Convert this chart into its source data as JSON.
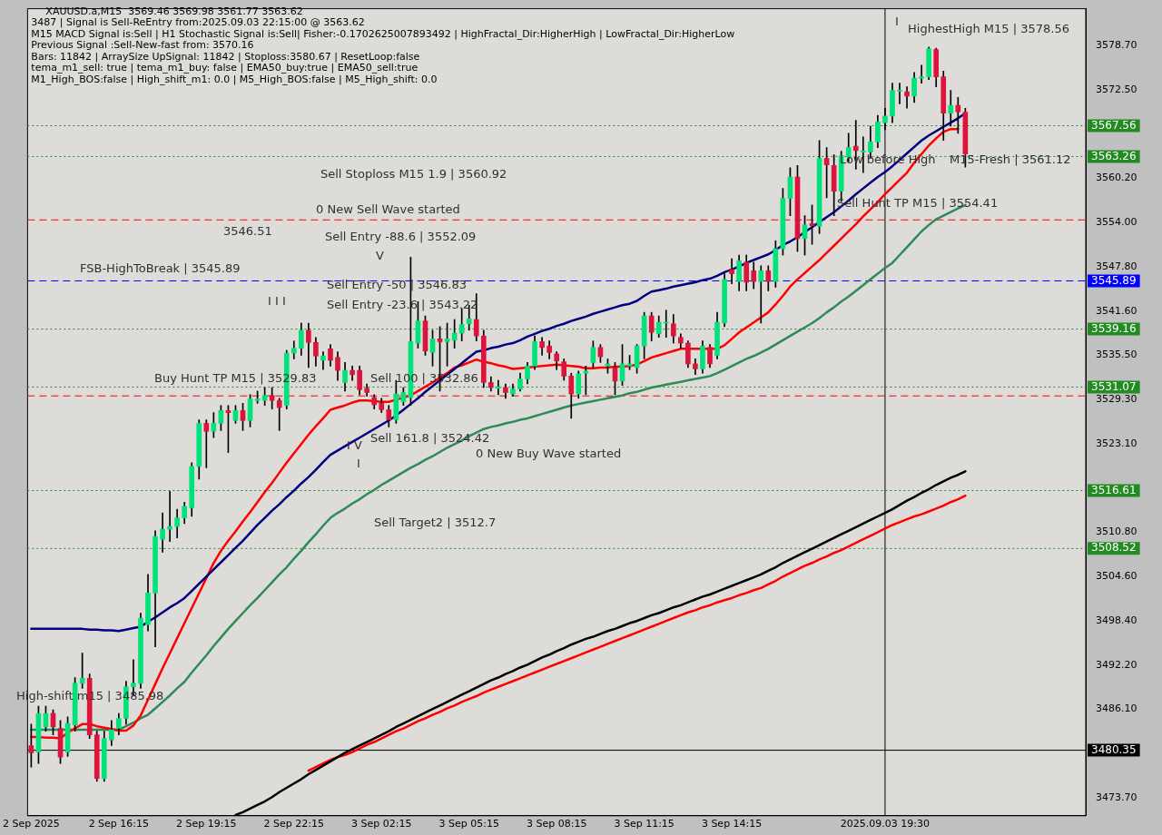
{
  "chart_data": {
    "type": "candlestick",
    "title": "XAUUSD.a,M15  3569.46 3569.98 3561.77 3563.62",
    "categories": [
      "2 Sep 2025",
      null,
      null,
      null,
      null,
      null,
      null,
      null,
      null,
      null,
      null,
      null,
      "2 Sep 16:15",
      null,
      null,
      null,
      null,
      null,
      null,
      null,
      null,
      null,
      null,
      null,
      "2 Sep 19:15",
      null,
      null,
      null,
      null,
      null,
      null,
      null,
      null,
      null,
      null,
      null,
      "2 Sep 22:15",
      null,
      null,
      null,
      null,
      null,
      null,
      null,
      null,
      null,
      null,
      null,
      "3 Sep 02:15",
      null,
      null,
      null,
      null,
      null,
      null,
      null,
      null,
      null,
      null,
      null,
      "3 Sep 05:15",
      null,
      null,
      null,
      null,
      null,
      null,
      null,
      null,
      null,
      null,
      null,
      "3 Sep 08:15",
      null,
      null,
      null,
      null,
      null,
      null,
      null,
      null,
      null,
      null,
      null,
      "3 Sep 11:15",
      null,
      null,
      null,
      null,
      null,
      null,
      null,
      null,
      null,
      null,
      null,
      "3 Sep 14:15",
      null,
      null,
      null,
      null,
      null,
      null,
      null,
      null,
      null,
      null,
      null,
      null,
      null,
      null,
      null,
      null,
      null,
      null,
      null,
      null,
      "2025.09.03 19:30",
      null,
      null,
      null,
      null,
      null,
      null,
      null,
      null,
      null,
      null,
      null,
      null,
      null,
      null,
      null,
      null,
      null,
      null,
      null,
      null,
      null,
      null,
      null,
      null,
      null,
      null,
      null
    ],
    "ohlc": [
      [
        3481,
        3484,
        3478,
        3480
      ],
      [
        3480.1,
        3486.5,
        3478.5,
        3485.5
      ],
      [
        3483.6,
        3486.5,
        3483,
        3485.5
      ],
      [
        3485.5,
        3486,
        3482.5,
        3483.6
      ],
      [
        3483.4,
        3484.5,
        3478.5,
        3479.4
      ],
      [
        3480.1,
        3485,
        3479.5,
        3484.1
      ],
      [
        3483.9,
        3490.5,
        3483,
        3489.7
      ],
      [
        3489.7,
        3493.9,
        3489,
        3490.4
      ],
      [
        3490.4,
        3491,
        3482,
        3482.5
      ],
      [
        3482.5,
        3483,
        3476,
        3476.4
      ],
      [
        3476.4,
        3483,
        3476,
        3482
      ],
      [
        3481.8,
        3484.5,
        3481,
        3483.2
      ],
      [
        3483.4,
        3485.5,
        3482.5,
        3484.8
      ],
      [
        3484.8,
        3490,
        3484,
        3489.2
      ],
      [
        3489.2,
        3493,
        3488,
        3489.7
      ],
      [
        3489.7,
        3499.5,
        3489,
        3498.8
      ],
      [
        3497.9,
        3504.9,
        3497,
        3502.3
      ],
      [
        3502.3,
        3511,
        3494.8,
        3510.2
      ],
      [
        3509.8,
        3513.5,
        3508,
        3511.2
      ],
      [
        3511.2,
        3516.5,
        3509.5,
        3511.6
      ],
      [
        3511.6,
        3514,
        3510,
        3512.8
      ],
      [
        3512.8,
        3515,
        3512,
        3514.4
      ],
      [
        3514.2,
        3520.5,
        3513,
        3520
      ],
      [
        3520,
        3526.5,
        3518.2,
        3526
      ],
      [
        3526,
        3526.5,
        3519.8,
        3524.9
      ],
      [
        3524.9,
        3527.5,
        3524,
        3526
      ],
      [
        3526,
        3528.5,
        3525,
        3527.8
      ],
      [
        3527.8,
        3528.5,
        3521.9,
        3527.5
      ],
      [
        3526.4,
        3528.5,
        3526,
        3527.8
      ],
      [
        3527.8,
        3528.8,
        3525,
        3526.4
      ],
      [
        3526.4,
        3530,
        3525.5,
        3529.4
      ],
      [
        3529.2,
        3530.5,
        3528.8,
        3529.4
      ],
      [
        3529.2,
        3531,
        3528.5,
        3529.9
      ],
      [
        3529.9,
        3531,
        3528,
        3529.2
      ],
      [
        3529.2,
        3529.5,
        3525,
        3528.2
      ],
      [
        3528.5,
        3536.2,
        3528,
        3535.8
      ],
      [
        3535.8,
        3537.5,
        3535,
        3536.5
      ],
      [
        3536.5,
        3540,
        3535.5,
        3539
      ],
      [
        3539,
        3540,
        3533.8,
        3537.3
      ],
      [
        3537.3,
        3538,
        3534,
        3535.4
      ],
      [
        3534.8,
        3536,
        3533.5,
        3535.4
      ],
      [
        3536.4,
        3537,
        3534,
        3534.8
      ],
      [
        3535.2,
        3536,
        3532,
        3533.4
      ],
      [
        3531.7,
        3534.5,
        3530.5,
        3533.4
      ],
      [
        3533.4,
        3534,
        3532,
        3532.8
      ],
      [
        3533.4,
        3534,
        3530,
        3530.7
      ],
      [
        3530.9,
        3531.5,
        3529.8,
        3530.3
      ],
      [
        3529.6,
        3530,
        3528,
        3528.6
      ],
      [
        3528.8,
        3529.5,
        3527.5,
        3527.9
      ],
      [
        3527.9,
        3528.5,
        3525.5,
        3526.5
      ],
      [
        3526.5,
        3532,
        3526,
        3530.1
      ],
      [
        3529,
        3531,
        3528.5,
        3530.3
      ],
      [
        3529.6,
        3549.2,
        3528.5,
        3537.4
      ],
      [
        3537.2,
        3543,
        3536.5,
        3540.3
      ],
      [
        3540.3,
        3541,
        3535.5,
        3536.1
      ],
      [
        3535.9,
        3539,
        3534,
        3537.8
      ],
      [
        3537.8,
        3539.5,
        3530.5,
        3537.4
      ],
      [
        3537.4,
        3540,
        3534,
        3537.8
      ],
      [
        3537.6,
        3540.5,
        3536.5,
        3538.6
      ],
      [
        3538.6,
        3542,
        3537.5,
        3539.8
      ],
      [
        3539.9,
        3542.5,
        3539,
        3540.6
      ],
      [
        3540.5,
        3544.1,
        3537.5,
        3538.2
      ],
      [
        3538.2,
        3539,
        3531,
        3531.7
      ],
      [
        3531.7,
        3532.5,
        3530.5,
        3531
      ],
      [
        3530.9,
        3532,
        3530,
        3531.1
      ],
      [
        3531,
        3531.5,
        3529.5,
        3530.3
      ],
      [
        3530.1,
        3531.5,
        3529.8,
        3530.8
      ],
      [
        3530.8,
        3533,
        3530.5,
        3532.2
      ],
      [
        3532.2,
        3534.5,
        3531.5,
        3534
      ],
      [
        3534,
        3538.2,
        3533.5,
        3537.4
      ],
      [
        3537.4,
        3538,
        3535.5,
        3536.6
      ],
      [
        3536.8,
        3537.5,
        3535,
        3535.9
      ],
      [
        3535.7,
        3536,
        3533.5,
        3534.7
      ],
      [
        3534.6,
        3535,
        3532,
        3532.6
      ],
      [
        3532.6,
        3533,
        3526.7,
        3530.1
      ],
      [
        3530.1,
        3533.3,
        3529.5,
        3532.9
      ],
      [
        3533,
        3534,
        3530,
        3533.3
      ],
      [
        3534.5,
        3537.5,
        3533.8,
        3536.6
      ],
      [
        3536.6,
        3537,
        3534.5,
        3535.3
      ],
      [
        3534,
        3535,
        3533,
        3534.3
      ],
      [
        3533.8,
        3534.5,
        3530,
        3531.9
      ],
      [
        3531.9,
        3537,
        3531.3,
        3534.3
      ],
      [
        3534,
        3535.5,
        3533.5,
        3534.3
      ],
      [
        3533.8,
        3537,
        3533,
        3536.8
      ],
      [
        3536.8,
        3541.5,
        3535,
        3541
      ],
      [
        3541,
        3541.5,
        3537.5,
        3538.7
      ],
      [
        3538.5,
        3541,
        3538,
        3540.1
      ],
      [
        3540,
        3541.8,
        3538,
        3540.1
      ],
      [
        3539.9,
        3541.2,
        3537.2,
        3538.2
      ],
      [
        3538,
        3538.5,
        3536.5,
        3537.2
      ],
      [
        3537.2,
        3537.5,
        3533.8,
        3534.3
      ],
      [
        3534.3,
        3535,
        3532.8,
        3533.6
      ],
      [
        3533.6,
        3537.5,
        3533,
        3536.8
      ],
      [
        3536.6,
        3537,
        3533.8,
        3534.3
      ],
      [
        3535.5,
        3541.5,
        3535,
        3540.1
      ],
      [
        3540,
        3546.9,
        3539.5,
        3546.1
      ],
      [
        3547.5,
        3549,
        3545.5,
        3546.9
      ],
      [
        3545.8,
        3549.5,
        3544.5,
        3548.7
      ],
      [
        3548.5,
        3549.5,
        3544.5,
        3545.7
      ],
      [
        3547.3,
        3548.5,
        3544.8,
        3545.8
      ],
      [
        3545.8,
        3548,
        3540,
        3547.3
      ],
      [
        3547.3,
        3548,
        3544.5,
        3545.8
      ],
      [
        3545.8,
        3551.5,
        3545,
        3550.4
      ],
      [
        3550.4,
        3558.8,
        3549.5,
        3557.4
      ],
      [
        3557.4,
        3561.7,
        3555,
        3560.4
      ],
      [
        3560.4,
        3562,
        3550,
        3551.8
      ],
      [
        3551.8,
        3555,
        3549.5,
        3553.7
      ],
      [
        3553.9,
        3556.5,
        3551,
        3553.6
      ],
      [
        3553.5,
        3565.5,
        3552.5,
        3563
      ],
      [
        3563,
        3564.5,
        3557.5,
        3562.1
      ],
      [
        3562,
        3563.5,
        3555,
        3558.4
      ],
      [
        3558.4,
        3564,
        3557,
        3563.4
      ],
      [
        3563.2,
        3566.5,
        3562.5,
        3564.5
      ],
      [
        3564.7,
        3568.3,
        3561.5,
        3564.1
      ],
      [
        3563.9,
        3566,
        3561,
        3563.9
      ],
      [
        3563.9,
        3567.5,
        3563,
        3565.3
      ],
      [
        3565.3,
        3569,
        3564.5,
        3568.1
      ],
      [
        3568,
        3570,
        3567,
        3568.9
      ],
      [
        3568.9,
        3573.5,
        3568,
        3572.5
      ],
      [
        3572.4,
        3573.5,
        3570.6,
        3572.5
      ],
      [
        3572.3,
        3573,
        3570,
        3571.7
      ],
      [
        3571.7,
        3575,
        3570.8,
        3574.2
      ],
      [
        3574.2,
        3576,
        3573.5,
        3574.4
      ],
      [
        3574.4,
        3578.56,
        3574,
        3578.3
      ],
      [
        3578.2,
        3578.4,
        3573,
        3574.4
      ],
      [
        3574.4,
        3575.2,
        3565.5,
        3569.3
      ],
      [
        3569.3,
        3572.5,
        3567.5,
        3570.4
      ],
      [
        3570.4,
        3571.5,
        3566.5,
        3569.5
      ],
      [
        3569.46,
        3569.98,
        3561.77,
        3563.62
      ],
      null,
      null,
      null,
      null,
      null,
      null,
      null,
      null,
      null,
      null,
      null,
      null,
      null,
      null,
      null,
      null
    ],
    "colors": [
      "#dc143c",
      "#00e27a",
      "#00e27a",
      "#dc143c",
      "#dc143c",
      "#00e27a",
      "#00e27a",
      "#00e27a",
      "#dc143c",
      "#dc143c",
      "#00e27a",
      "#00e27a",
      "#00e27a",
      "#00e27a",
      "#00e27a",
      "#00e27a",
      "#00e27a",
      "#00e27a",
      "#00e27a",
      "#00e27a",
      "#00e27a",
      "#00e27a",
      "#00e27a",
      "#00e27a",
      "#dc143c",
      "#00e27a",
      "#00e27a",
      "#dc143c",
      "#00e27a",
      "#dc143c",
      "#00e27a",
      "#00e27a",
      "#00e27a",
      "#dc143c",
      "#dc143c",
      "#00e27a",
      "#00e27a",
      "#00e27a",
      "#dc143c",
      "#dc143c",
      "#00e27a",
      "#dc143c",
      "#dc143c",
      "#00e27a",
      "#dc143c",
      "#dc143c",
      "#dc143c",
      "#dc143c",
      "#dc143c",
      "#dc143c",
      "#00e27a",
      "#00e27a",
      "#00e27a",
      "#00e27a",
      "#dc143c",
      "#00e27a",
      "#dc143c",
      "#00e27a",
      "#00e27a",
      "#00e27a",
      "#00e27a",
      "#dc143c",
      "#dc143c",
      "#dc143c",
      "#00e27a",
      "#dc143c",
      "#00e27a",
      "#00e27a",
      "#00e27a",
      "#00e27a",
      "#dc143c",
      "#dc143c",
      "#dc143c",
      "#dc143c",
      "#dc143c",
      "#00e27a",
      "#00e27a",
      "#00e27a",
      "#dc143c",
      "#00e27a",
      "#dc143c",
      "#00e27a",
      "#00e27a",
      "#00e27a",
      "#00e27a",
      "#dc143c",
      "#00e27a",
      "#00e27a",
      "#dc143c",
      "#dc143c",
      "#dc143c",
      "#dc143c",
      "#00e27a",
      "#dc143c",
      "#00e27a",
      "#00e27a",
      "#dc143c",
      "#00e27a",
      "#dc143c",
      "#dc143c",
      "#00e27a",
      "#dc143c",
      "#00e27a",
      "#00e27a",
      "#00e27a",
      "#dc143c",
      "#00e27a",
      "#dc143c",
      "#00e27a",
      "#dc143c",
      "#dc143c",
      "#00e27a",
      "#00e27a",
      "#dc143c",
      "#00e27a",
      "#00e27a",
      "#00e27a",
      "#00e27a",
      "#00e27a",
      "#00e27a",
      "#dc143c",
      "#00e27a",
      "#00e27a",
      "#00e27a",
      "#dc143c",
      "#dc143c",
      "#00e27a",
      "#dc143c",
      "#dc143c",
      null,
      null,
      null,
      null,
      null,
      null,
      null,
      null,
      null,
      null,
      null,
      null,
      null,
      null,
      null,
      null
    ],
    "series": [
      {
        "type": "line",
        "color": "#000080",
        "values": [
          3497.3,
          3497.3,
          3497.3,
          3497.3,
          3497.3,
          3497.3,
          3497.3,
          3497.3,
          3497.2,
          3497.2,
          3497.1,
          3497.1,
          3497.0,
          3497.2,
          3497.4,
          3497.6,
          3498.3,
          3498.9,
          3499.6,
          3500.3,
          3500.9,
          3501.6,
          3502.6,
          3503.6,
          3504.6,
          3505.6,
          3506.6,
          3507.6,
          3508.6,
          3509.6,
          3510.7,
          3511.8,
          3512.8,
          3513.8,
          3514.7,
          3515.7,
          3516.6,
          3517.6,
          3518.5,
          3519.5,
          3520.6,
          3521.6,
          3522.2,
          3522.8,
          3523.4,
          3524.0,
          3524.6,
          3525.2,
          3525.8,
          3526.4,
          3527.1,
          3527.9,
          3528.7,
          3529.5,
          3530.4,
          3531.2,
          3532.0,
          3532.8,
          3533.6,
          3534.4,
          3535.2,
          3536.0,
          3536.2,
          3536.5,
          3536.7,
          3537.0,
          3537.2,
          3537.6,
          3538.1,
          3538.5,
          3538.9,
          3539.2,
          3539.6,
          3539.9,
          3540.3,
          3540.6,
          3540.9,
          3541.3,
          3541.6,
          3541.9,
          3542.2,
          3542.5,
          3542.7,
          3543.1,
          3543.8,
          3544.4,
          3544.6,
          3544.8,
          3545.1,
          3545.3,
          3545.5,
          3545.7,
          3546.0,
          3546.2,
          3546.6,
          3547.1,
          3547.5,
          3547.9,
          3548.4,
          3548.8,
          3549.2,
          3549.6,
          3550.2,
          3550.9,
          3551.4,
          3552.0,
          3552.7,
          3553.4,
          3554.1,
          3554.8,
          3555.5,
          3556.3,
          3557.1,
          3558.0,
          3558.8,
          3559.6,
          3560.4,
          3561.1,
          3561.9,
          3562.8,
          3563.7,
          3564.6,
          3565.5,
          3566.2,
          3566.8,
          3567.4,
          3568.0,
          3568.6,
          3569.3,
          null,
          null,
          null,
          null,
          null,
          null,
          null,
          null,
          null,
          null,
          null,
          null,
          null,
          null,
          null,
          null
        ]
      },
      {
        "type": "line",
        "color": "#ff0000",
        "values": [
          3482.2,
          3482.2,
          3482.1,
          3482.1,
          3482.0,
          3482.8,
          3483.4,
          3484.0,
          3484.0,
          3483.7,
          3483.5,
          3483.3,
          3483.1,
          3483.1,
          3483.8,
          3485.2,
          3487.4,
          3489.6,
          3491.8,
          3493.9,
          3496.0,
          3498.1,
          3500.2,
          3502.3,
          3504.4,
          3506.5,
          3508.2,
          3509.6,
          3510.9,
          3512.3,
          3513.6,
          3515.0,
          3516.4,
          3517.7,
          3519.1,
          3520.5,
          3521.8,
          3523.1,
          3524.4,
          3525.6,
          3526.7,
          3527.9,
          3528.2,
          3528.5,
          3528.9,
          3529.2,
          3529.2,
          3529.1,
          3529.0,
          3529.0,
          3529.3,
          3529.6,
          3529.9,
          3530.5,
          3531.1,
          3531.7,
          3532.4,
          3533.0,
          3533.8,
          3534.1,
          3534.5,
          3534.9,
          3534.6,
          3534.4,
          3534.1,
          3533.9,
          3533.6,
          3533.7,
          3533.8,
          3533.9,
          3534.0,
          3534.1,
          3534.2,
          3534.1,
          3534.0,
          3533.9,
          3533.7,
          3533.7,
          3533.8,
          3533.8,
          3533.9,
          3533.9,
          3534.0,
          3534.2,
          3534.7,
          3535.2,
          3535.5,
          3535.8,
          3536.1,
          3536.4,
          3536.4,
          3536.4,
          3536.4,
          3536.4,
          3536.4,
          3536.9,
          3537.8,
          3538.7,
          3539.4,
          3540.1,
          3540.8,
          3541.5,
          3542.6,
          3543.8,
          3545.1,
          3546.1,
          3547.0,
          3547.9,
          3548.8,
          3549.8,
          3550.8,
          3551.8,
          3552.8,
          3553.8,
          3554.9,
          3555.9,
          3556.9,
          3558.0,
          3559.0,
          3560.0,
          3561.0,
          3562.4,
          3563.6,
          3564.8,
          3565.8,
          3566.7,
          3567.1,
          3567.1,
          null,
          null,
          null,
          null,
          null,
          null,
          null,
          null,
          null,
          null,
          null,
          null,
          null,
          null,
          null,
          null,
          null
        ]
      },
      {
        "type": "line",
        "color": "#2e8b57",
        "values": [
          3483.2,
          3483.2,
          3483.2,
          3483.2,
          3483.2,
          3483.2,
          3483.2,
          3483.2,
          3483.2,
          3483.2,
          3483.2,
          3483.2,
          3483.2,
          3483.7,
          3484.2,
          3484.8,
          3485.3,
          3486.2,
          3487.1,
          3488.0,
          3489.0,
          3489.9,
          3491.2,
          3492.4,
          3493.6,
          3494.9,
          3496.1,
          3497.3,
          3498.4,
          3499.5,
          3500.6,
          3501.6,
          3502.7,
          3503.8,
          3504.9,
          3505.9,
          3507.1,
          3508.2,
          3509.4,
          3510.5,
          3511.7,
          3512.8,
          3513.5,
          3514.1,
          3514.8,
          3515.4,
          3516.1,
          3516.7,
          3517.4,
          3518.0,
          3518.6,
          3519.2,
          3519.8,
          3520.3,
          3520.9,
          3521.4,
          3522.0,
          3522.6,
          3523.1,
          3523.6,
          3524.2,
          3524.7,
          3525.2,
          3525.5,
          3525.7,
          3526.0,
          3526.2,
          3526.5,
          3526.7,
          3527.0,
          3527.3,
          3527.6,
          3527.9,
          3528.2,
          3528.5,
          3528.7,
          3528.9,
          3529.1,
          3529.3,
          3529.5,
          3529.7,
          3529.9,
          3530.2,
          3530.4,
          3530.7,
          3531.0,
          3531.2,
          3531.4,
          3531.6,
          3531.8,
          3532.0,
          3532.2,
          3532.4,
          3532.6,
          3533.0,
          3533.5,
          3534.0,
          3534.5,
          3535.0,
          3535.4,
          3535.9,
          3536.4,
          3537.0,
          3537.6,
          3538.2,
          3538.8,
          3539.4,
          3540.0,
          3540.7,
          3541.5,
          3542.2,
          3543.0,
          3543.7,
          3544.5,
          3545.3,
          3546.1,
          3546.9,
          3547.7,
          3548.4,
          3549.5,
          3550.6,
          3551.7,
          3552.8,
          3553.7,
          3554.5,
          3555.0,
          3555.5,
          3556.0,
          3556.5,
          null,
          null,
          null,
          null,
          null,
          null,
          null,
          null,
          null,
          null,
          null,
          null,
          null,
          null,
          null,
          null
        ]
      },
      {
        "type": "line",
        "color": "#000000",
        "values": [
          null,
          null,
          null,
          null,
          null,
          null,
          null,
          null,
          null,
          null,
          null,
          null,
          null,
          null,
          null,
          null,
          null,
          null,
          null,
          null,
          null,
          null,
          null,
          null,
          null,
          null,
          null,
          null,
          3471.3,
          3471.7,
          3472.2,
          3472.7,
          3473.2,
          3473.8,
          3474.5,
          3475.1,
          3475.7,
          3476.3,
          3477.0,
          3477.6,
          3478.2,
          3478.8,
          3479.4,
          3480.0,
          3480.5,
          3481.0,
          3481.5,
          3482.0,
          3482.5,
          3483.0,
          3483.6,
          3484.1,
          3484.6,
          3485.1,
          3485.6,
          3486.1,
          3486.6,
          3487.1,
          3487.6,
          3488.1,
          3488.6,
          3489.1,
          3489.6,
          3490.1,
          3490.5,
          3491.0,
          3491.4,
          3491.9,
          3492.3,
          3492.8,
          3493.3,
          3493.7,
          3494.2,
          3494.6,
          3495.1,
          3495.5,
          3495.9,
          3496.2,
          3496.6,
          3497.0,
          3497.3,
          3497.7,
          3498.1,
          3498.4,
          3498.8,
          3499.2,
          3499.5,
          3499.9,
          3500.3,
          3500.6,
          3501.0,
          3501.4,
          3501.8,
          3502.1,
          3502.5,
          3502.9,
          3503.3,
          3503.7,
          3504.1,
          3504.5,
          3504.9,
          3505.4,
          3505.9,
          3506.5,
          3507.0,
          3507.5,
          3508.0,
          3508.5,
          3509.0,
          3509.5,
          3510.0,
          3510.5,
          3511.0,
          3511.5,
          3512.0,
          3512.5,
          3513.0,
          3513.5,
          3514.0,
          3514.6,
          3515.2,
          3515.7,
          3516.3,
          3516.8,
          3517.4,
          3517.9,
          3518.4,
          3518.8,
          3519.3,
          null,
          null,
          null,
          null,
          null,
          null,
          null,
          null,
          null,
          null,
          null,
          null,
          null,
          null,
          null,
          null
        ]
      },
      {
        "type": "line",
        "color": "#ff0000",
        "values": [
          null,
          null,
          null,
          null,
          null,
          null,
          null,
          null,
          null,
          null,
          null,
          null,
          null,
          null,
          null,
          null,
          null,
          null,
          null,
          null,
          null,
          null,
          null,
          null,
          null,
          null,
          null,
          null,
          null,
          null,
          null,
          null,
          null,
          null,
          null,
          null,
          null,
          null,
          3477.5,
          3478.0,
          3478.5,
          3479.0,
          3479.4,
          3479.7,
          3480.1,
          3480.6,
          3481.1,
          3481.5,
          3482.0,
          3482.5,
          3483.0,
          3483.4,
          3483.9,
          3484.4,
          3484.8,
          3485.3,
          3485.7,
          3486.2,
          3486.6,
          3487.1,
          3487.5,
          3487.9,
          3488.4,
          3488.8,
          3489.2,
          3489.6,
          3490.0,
          3490.4,
          3490.8,
          3491.2,
          3491.6,
          3492.0,
          3492.4,
          3492.8,
          3493.2,
          3493.6,
          3494.0,
          3494.4,
          3494.8,
          3495.2,
          3495.6,
          3496.0,
          3496.4,
          3496.8,
          3497.2,
          3497.6,
          3498.0,
          3498.4,
          3498.8,
          3499.2,
          3499.6,
          3499.9,
          3500.3,
          3500.6,
          3501.0,
          3501.3,
          3501.6,
          3502.0,
          3502.3,
          3502.7,
          3503.0,
          3503.5,
          3504.0,
          3504.6,
          3505.1,
          3505.6,
          3506.1,
          3506.5,
          3507.0,
          3507.4,
          3507.9,
          3508.3,
          3508.8,
          3509.3,
          3509.8,
          3510.3,
          3510.8,
          3511.3,
          3511.8,
          3512.2,
          3512.6,
          3513.0,
          3513.3,
          3513.7,
          3514.1,
          3514.5,
          3515.0,
          3515.4,
          3515.9,
          null,
          null,
          null,
          null,
          null,
          null,
          null,
          null,
          null,
          null,
          null,
          null,
          null,
          null,
          null,
          null
        ]
      }
    ],
    "ylim": [
      3471.2,
      3583.9
    ],
    "yticks": [
      {
        "value": 3578.7,
        "label": "3578.70"
      },
      {
        "value": 3572.5,
        "label": "3572.50"
      },
      {
        "value": 3560.2,
        "label": "3560.20"
      },
      {
        "value": 3554,
        "label": "3554.00"
      },
      {
        "value": 3547.8,
        "label": "3547.80"
      },
      {
        "value": 3541.6,
        "label": "3541.60"
      },
      {
        "value": 3535.5,
        "label": "3535.50"
      },
      {
        "value": 3529.3,
        "label": "3529.30"
      },
      {
        "value": 3523.1,
        "label": "3523.10"
      },
      {
        "value": 3510.8,
        "label": "3510.80"
      },
      {
        "value": 3504.6,
        "label": "3504.60"
      },
      {
        "value": 3498.4,
        "label": "3498.40"
      },
      {
        "value": 3492.2,
        "label": "3492.20"
      },
      {
        "value": 3486.1,
        "label": "3486.10"
      },
      {
        "value": 3473.7,
        "label": "3473.70"
      }
    ],
    "ref_lines": [
      {
        "axis": "y",
        "value": 3567.56,
        "label": "3567.56",
        "color": "#228b22",
        "line_style": "dotted"
      },
      {
        "axis": "y",
        "value": 3563.26,
        "label": "3563.26",
        "color": "#228b22",
        "line_style": "dotted"
      },
      {
        "axis": "y",
        "value": 3545.89,
        "label": "3545.89",
        "color": "#0000ff",
        "line_style": "dashed"
      },
      {
        "axis": "y",
        "value": 3539.16,
        "label": "3539.16",
        "color": "#228b22",
        "line_style": "dotted"
      },
      {
        "axis": "y",
        "value": 3531.07,
        "label": "3531.07",
        "color": "#228b22",
        "line_style": "dotted"
      },
      {
        "axis": "y",
        "value": 3516.61,
        "label": "3516.61",
        "color": "#228b22",
        "line_style": "dotted"
      },
      {
        "axis": "y",
        "value": 3508.52,
        "label": "3508.52",
        "color": "#228b22",
        "line_style": "dotted"
      },
      {
        "axis": "y",
        "value": 3529.83,
        "color": "#ff0000",
        "line_style": "dashed"
      },
      {
        "axis": "y",
        "value": 3554.41,
        "color": "#ff0000",
        "line_style": "dashed"
      },
      {
        "axis": "y",
        "value": 3480.35,
        "label": "3480.35",
        "color": "#000000",
        "line_style": "solid"
      },
      {
        "axis": "x",
        "value": "2025.09.03 19:30",
        "color": "#000000",
        "line_style": "solid"
      }
    ],
    "annotations": [
      "3487 | Signal is Sell-ReEntry from:2025.09.03 22:15:00 @ 3563.62",
      "M15 MACD Signal is:Sell | H1 Stochastic Signal is:Sell| Fisher:-0.1702625007893492 | HighFractal_Dir:HigherHigh | LowFractal_Dir:HigherLow",
      "Previous Signal :Sell-New-fast from: 3570.16",
      "Bars: 11842 | ArraySize UpSignal: 11842 | Stoploss:3580.67 | ResetLoop:false",
      "tema_m1_sell: true | tema_m1_buy: false | EMA50_buy:true | EMA50_sell:true",
      "M1_High_BOS:false | High_shift_m1: 0.0 | M5_High_BOS:false | M5_High_shift: 0.0",
      "HighestHigh M15 | 3578.56",
      "I",
      "Low before High",
      "M15-Fresh | 3561.12",
      "Sell Hunt TP M15 | 3554.41",
      "Sell Stoploss M15 1.9 | 3560.92",
      "0 New Sell Wave started",
      "3546.51",
      "Sell Entry -88.6 | 3552.09",
      "V",
      "FSB-HighToBreak | 3545.89",
      "Sell Entry -50 | 3546.83",
      "Sell Entry -23.6 | 3543.22",
      "I I I",
      "Buy Hunt TP M15 | 3529.83",
      "Sell 100 | 3532.86",
      "Sell 161.8 | 3524.42",
      "I V",
      "I",
      "0 New Buy Wave started",
      "Sell Target2 | 3512.7",
      "High-shift m15 | 3485.98"
    ]
  }
}
